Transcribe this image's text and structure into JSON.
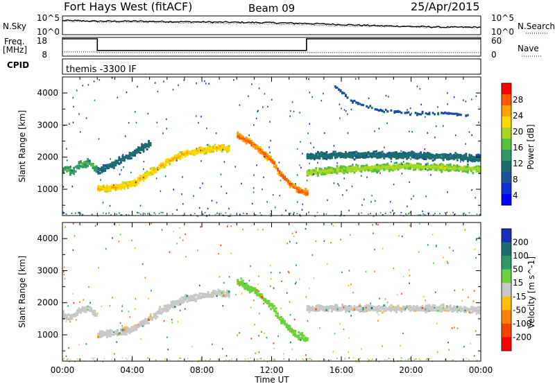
{
  "header": {
    "station": "Fort Hays West (fitACF)",
    "beam": "Beam 09",
    "date": "25/Apr/2015"
  },
  "top_panel": {
    "left_label": "N.Sky",
    "left_ticks": [
      "10^5",
      "10^0"
    ],
    "right_ticks": [
      "10^5",
      "10^0"
    ],
    "right_label": "N.Search"
  },
  "freq_panel": {
    "left_label_line1": "Freq.",
    "left_label_line2": "[MHz]",
    "left_ticks": [
      "18",
      "8"
    ],
    "right_ticks": [
      "60",
      "0"
    ],
    "right_label": "Nave",
    "cpid_label": "CPID",
    "cpid_text": "themis -3300 IF"
  },
  "x_axis": {
    "label": "Time UT",
    "ticks": [
      "00:00",
      "04:00",
      "08:00",
      "12:00",
      "16:00",
      "20:00",
      "00:00"
    ]
  },
  "power_colorbar": {
    "title": "Power [dB]",
    "ticks": [
      "28",
      "24",
      "20",
      "16",
      "12",
      "8",
      "4"
    ],
    "colors": [
      "#ff0000",
      "#ff5a00",
      "#ffa000",
      "#ffd800",
      "#a8d820",
      "#58c040",
      "#2e9a68",
      "#1d6e6e",
      "#1d4fa0",
      "#1030d8",
      "#0000ff"
    ]
  },
  "velocity_colorbar": {
    "title": "Velocity [m s^-1]",
    "ticks": [
      "200",
      "100",
      "50",
      "15",
      "-15",
      "-50",
      "-100",
      "-200"
    ],
    "colors": [
      "#1a2fb8",
      "#1d6e6e",
      "#2e9a68",
      "#6cd040",
      "#c8c8c8",
      "#ffc000",
      "#ff8000",
      "#ff4000",
      "#ff0000"
    ]
  },
  "chart_data": [
    {
      "type": "line",
      "title": "",
      "xlabel": "",
      "series": [
        {
          "x": [
            0,
            1,
            2,
            4,
            6,
            8,
            10,
            12,
            14,
            16,
            18,
            20,
            22,
            24
          ],
          "values": [
            3.8,
            3.7,
            3.6,
            3.6,
            3.5,
            3.4,
            3.3,
            3.2,
            3.0,
            2.7,
            2.4,
            2.2,
            2.0,
            2.0
          ]
        },
        {
          "x": [
            0,
            2,
            4,
            6,
            8,
            10,
            12,
            14,
            16,
            18,
            20,
            22,
            24
          ],
          "values": [
            3.5,
            3.4,
            3.3,
            3.2,
            3.1,
            3.0,
            2.9,
            2.7,
            2.3,
            2.2,
            2.0,
            1.9,
            1.9
          ]
        }
      ],
      "ylim_log10": [
        0,
        5
      ]
    },
    {
      "type": "line",
      "title": "",
      "series": [
        {
          "x": [
            0,
            2.0,
            2.0,
            14.0,
            14.0,
            24
          ],
          "values": [
            18,
            18,
            10,
            10,
            18,
            18
          ]
        },
        {
          "x": [
            0,
            2.0,
            2.0,
            24
          ],
          "values": [
            8,
            8,
            6,
            6
          ]
        }
      ],
      "ylim": [
        8,
        18
      ],
      "y2lim": [
        0,
        60
      ]
    },
    {
      "type": "heatmap",
      "title": "",
      "xlabel": "Time UT",
      "ylabel": "Slant Range [km]",
      "xlim": [
        0,
        24
      ],
      "ylim": [
        180,
        4500
      ],
      "yticks": [
        1000,
        2000,
        3000,
        4000
      ],
      "quantity": "Power [dB]",
      "structures": [
        {
          "x": [
            0.0,
            0.5,
            1.0,
            1.5,
            2.0
          ],
          "y": [
            1650,
            1600,
            1800,
            1850,
            1600
          ],
          "value": 12
        },
        {
          "x": [
            2.0,
            3.0,
            4.0,
            5.0,
            6.0,
            7.0,
            8.0,
            9.0,
            9.5
          ],
          "y": [
            1050,
            1100,
            1200,
            1550,
            1900,
            2150,
            2250,
            2350,
            2300
          ],
          "value": 20
        },
        {
          "x": [
            2.0,
            3.0,
            4.0,
            5.0
          ],
          "y": [
            1600,
            1850,
            2150,
            2450
          ],
          "value": 8
        },
        {
          "x": [
            10.0,
            11.0,
            12.0,
            12.5,
            13.0,
            13.5,
            14.0
          ],
          "y": [
            2700,
            2400,
            1900,
            1500,
            1200,
            1000,
            900
          ],
          "value": 24
        },
        {
          "x": [
            14.0,
            16.0,
            18.0,
            20.0,
            22.0,
            24.0
          ],
          "y": [
            1550,
            1650,
            1700,
            1750,
            1700,
            1650
          ],
          "value": 16
        },
        {
          "x": [
            14.0,
            16.0,
            18.0,
            20.0,
            22.0,
            24.0
          ],
          "y": [
            2050,
            2100,
            2100,
            2100,
            2050,
            2000
          ],
          "value": 8
        },
        {
          "x": [
            15.5,
            16.5,
            18.0,
            20.0,
            22.0,
            23.5
          ],
          "y": [
            4300,
            3800,
            3500,
            3400,
            3400,
            3300
          ],
          "value": 6
        }
      ]
    },
    {
      "type": "heatmap",
      "title": "",
      "xlabel": "Time UT",
      "ylabel": "Slant Range [km]",
      "xlim": [
        0,
        24
      ],
      "ylim": [
        180,
        4500
      ],
      "yticks": [
        1000,
        2000,
        3000,
        4000
      ],
      "quantity": "Velocity [m s^-1]",
      "structures": [
        {
          "x": [
            0.0,
            0.5,
            1.0,
            1.5,
            2.0
          ],
          "y": [
            1650,
            1600,
            1800,
            1850,
            1600
          ],
          "value": 0
        },
        {
          "x": [
            2.0,
            3.0,
            4.0,
            5.0,
            6.0,
            7.0,
            8.0,
            9.0,
            9.5
          ],
          "y": [
            1050,
            1100,
            1200,
            1550,
            1900,
            2150,
            2250,
            2350,
            2300
          ],
          "value": 0
        },
        {
          "x": [
            10.0,
            11.0,
            12.0,
            12.5,
            13.0,
            13.5,
            14.0
          ],
          "y": [
            2700,
            2400,
            1900,
            1500,
            1200,
            1000,
            900
          ],
          "value": 40
        },
        {
          "x": [
            14.0,
            16.0,
            18.0,
            20.0,
            22.0,
            24.0
          ],
          "y": [
            1850,
            1850,
            1850,
            1850,
            1850,
            1800
          ],
          "value": 0
        }
      ]
    }
  ]
}
